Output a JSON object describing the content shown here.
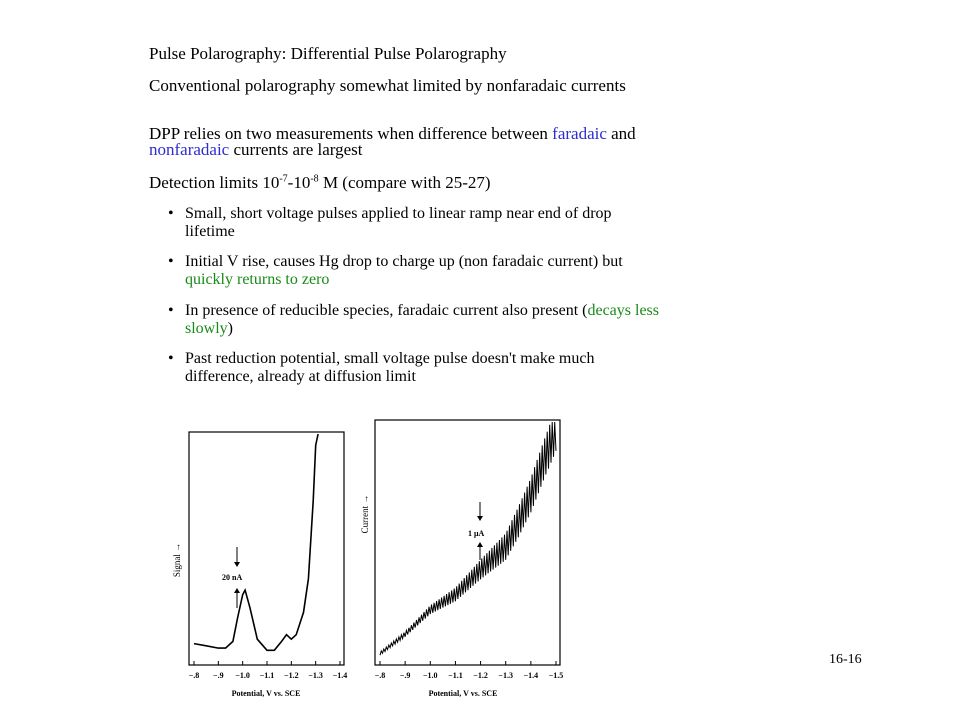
{
  "slide": {
    "title": "Pulse Polarography: Differential Pulse Polarography",
    "para1": "Conventional polarography somewhat limited by nonfaradaic currents",
    "para2_a": "DPP relies on two measurements when difference between ",
    "para2_b": "faradaic",
    "para2_c": " and ",
    "para2_d": "nonfaradaic",
    "para2_e": " currents are largest",
    "para3_a": "Detection limits 10",
    "para3_b": "-7",
    "para3_c": "-10",
    "para3_d": "-8",
    "para3_e": " M (compare with 25-27)",
    "bullet_char": "•",
    "bullet1": "Small, short voltage pulses applied to linear ramp near end of drop lifetime",
    "bullet2_a": "Initial V rise, causes Hg drop to charge up (non faradaic current) but ",
    "bullet2_b": "quickly returns to zero",
    "bullet3_a": "In presence of reducible species, faradaic current also present (",
    "bullet3_b": "decays less slowly",
    "bullet3_c": ")",
    "bullet4": "Past reduction potential, small voltage pulse doesn't make much difference, already at diffusion limit",
    "slide_number": "16-16",
    "colors": {
      "faradaic_blue": "#2b2bd0",
      "green": "#188a18"
    }
  },
  "chart_data": [
    {
      "type": "line",
      "title": "",
      "xlabel": "Potential, V vs. SCE",
      "ylabel": "Signal →",
      "x_tick_labels": [
        "−.8",
        "−.9",
        "−1.0",
        "−1.1",
        "−1.2",
        "−1.3",
        "−1.4"
      ],
      "xlim": [
        -0.8,
        -1.4
      ],
      "scale_bar_label": "20 nA",
      "series": [
        {
          "x": [
            -0.8,
            -0.85,
            -0.9,
            -0.93,
            -0.96,
            -0.98,
            -1.0,
            -1.01,
            -1.03,
            -1.06,
            -1.1,
            -1.13,
            -1.16,
            -1.18,
            -1.2,
            -1.22,
            -1.25,
            -1.27,
            -1.29,
            -1.3,
            -1.31
          ],
          "y": [
            0.06,
            0.05,
            0.04,
            0.04,
            0.07,
            0.18,
            0.28,
            0.3,
            0.22,
            0.08,
            0.03,
            0.03,
            0.07,
            0.1,
            0.08,
            0.1,
            0.2,
            0.35,
            0.7,
            0.95,
            1.0
          ]
        }
      ]
    },
    {
      "type": "line",
      "title": "",
      "xlabel": "Potential, V vs. SCE",
      "ylabel": "Current →",
      "x_tick_labels": [
        "−.8",
        "−.9",
        "−1.0",
        "−1.1",
        "−1.2",
        "−1.3",
        "−1.4",
        "−1.5"
      ],
      "xlim": [
        -0.8,
        -1.5
      ],
      "scale_bar_label": "1 μA",
      "series": [
        {
          "x": [
            -0.8,
            -0.9,
            -1.0,
            -1.1,
            -1.2,
            -1.3,
            -1.35,
            -1.4,
            -1.45,
            -1.5
          ],
          "y": [
            0.02,
            0.1,
            0.2,
            0.26,
            0.36,
            0.45,
            0.55,
            0.66,
            0.8,
            0.93
          ]
        }
      ]
    }
  ]
}
